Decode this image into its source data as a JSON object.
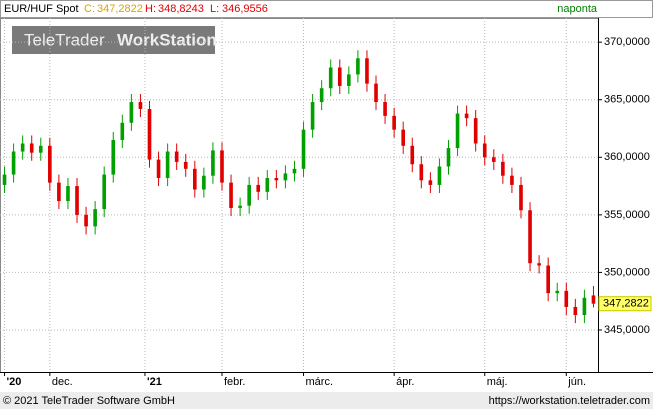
{
  "header": {
    "instrument": "EUR/HUF Spot",
    "close_label": "C:",
    "close_value": "347,2822",
    "high_label": "H:",
    "high_value": "348,8243",
    "low_label": "L:",
    "low_value": "346,9556",
    "period": "naponta"
  },
  "watermark": {
    "brand": "TeleTrader",
    "product": "WorkStation"
  },
  "footer": {
    "copyright": "© 2021 TeleTrader Software GmbH",
    "url": "https://workstation.teletrader.com"
  },
  "chart_data": {
    "type": "candlestick",
    "up_color": "#00a000",
    "down_color": "#e00000",
    "last_price": {
      "value": 347.2822,
      "label": "347,2822"
    },
    "xlim": [
      -0.5,
      65.5
    ],
    "xticks": [
      {
        "value": 0,
        "label": "'20"
      },
      {
        "value": 5,
        "label": "dec."
      },
      {
        "value": 15.5,
        "label": "'21"
      },
      {
        "value": 24,
        "label": "febr."
      },
      {
        "value": 33,
        "label": "márc."
      },
      {
        "value": 43,
        "label": "ápr."
      },
      {
        "value": 53,
        "label": "máj."
      },
      {
        "value": 62,
        "label": "jún."
      }
    ],
    "ylim": [
      341.35,
      372.1
    ],
    "yticks": [
      {
        "value": 345,
        "label": "345,0000"
      },
      {
        "value": 350,
        "label": "350,0000"
      },
      {
        "value": 355,
        "label": "355,0000"
      },
      {
        "value": 360,
        "label": "360,0000"
      },
      {
        "value": 365,
        "label": "365,0000"
      },
      {
        "value": 370,
        "label": "370,0000"
      }
    ],
    "grid": true,
    "open": [
      357.6,
      358.5,
      360.5,
      361.2,
      360.4,
      361.0,
      357.8,
      356.2,
      357.5,
      355.0,
      354.0,
      355.5,
      358.5,
      361.5,
      363.0,
      364.8,
      364.2,
      359.8,
      358.2,
      360.5,
      359.6,
      359.0,
      357.2,
      358.4,
      360.6,
      357.8,
      355.6,
      355.8,
      357.6,
      357.0,
      358.2,
      358.0,
      358.6,
      359.0,
      362.4,
      364.8,
      366.0,
      367.8,
      366.2,
      367.2,
      368.6,
      366.4,
      364.8,
      363.6,
      362.4,
      361.0,
      359.4,
      358.0,
      357.6,
      359.2,
      360.8,
      363.8,
      363.4,
      361.2,
      360.0,
      359.6,
      358.4,
      357.6,
      355.4,
      350.8,
      350.6,
      348.2,
      348.4,
      347.0,
      346.3,
      348.0
    ],
    "high": [
      359.2,
      361.2,
      361.9,
      361.9,
      361.7,
      361.7,
      358.5,
      358.2,
      358.2,
      355.7,
      356.2,
      359.2,
      362.2,
      363.7,
      365.5,
      365.5,
      364.9,
      360.5,
      361.2,
      361.2,
      360.3,
      359.7,
      359.1,
      361.3,
      361.3,
      358.5,
      356.5,
      358.3,
      358.3,
      358.9,
      358.9,
      359.3,
      359.7,
      363.1,
      365.5,
      366.7,
      368.5,
      368.5,
      367.9,
      369.3,
      369.3,
      367.1,
      365.5,
      364.3,
      363.1,
      361.7,
      360.1,
      358.7,
      359.9,
      361.5,
      364.5,
      364.5,
      364.1,
      361.9,
      360.7,
      360.3,
      359.1,
      358.3,
      356.1,
      351.5,
      351.3,
      349.1,
      349.1,
      347.7,
      348.5,
      348.8243
    ],
    "low": [
      356.9,
      357.8,
      359.8,
      359.7,
      359.7,
      357.1,
      355.5,
      355.5,
      354.3,
      353.3,
      353.3,
      354.8,
      357.8,
      360.8,
      362.3,
      363.5,
      359.1,
      357.5,
      357.5,
      358.9,
      358.3,
      356.5,
      356.5,
      357.7,
      357.1,
      354.9,
      354.9,
      355.1,
      356.3,
      356.3,
      357.3,
      357.3,
      357.9,
      358.3,
      361.7,
      364.1,
      365.3,
      365.5,
      365.5,
      366.5,
      365.7,
      364.1,
      362.9,
      361.7,
      360.3,
      358.7,
      357.3,
      356.9,
      356.9,
      358.5,
      360.1,
      362.7,
      360.5,
      359.3,
      358.9,
      357.7,
      356.9,
      354.7,
      350.1,
      349.9,
      347.5,
      347.5,
      346.3,
      345.6,
      345.6,
      346.9556
    ],
    "close": [
      358.5,
      360.5,
      361.2,
      360.4,
      361.0,
      357.8,
      356.2,
      357.5,
      355.0,
      354.0,
      355.5,
      358.5,
      361.5,
      363.0,
      364.8,
      364.2,
      359.8,
      358.2,
      360.5,
      359.6,
      359.0,
      357.2,
      358.4,
      360.6,
      357.8,
      355.6,
      355.8,
      357.6,
      357.0,
      358.2,
      358.0,
      358.6,
      359.0,
      362.4,
      364.8,
      366.0,
      367.8,
      366.2,
      367.2,
      368.6,
      366.4,
      364.8,
      363.6,
      362.4,
      361.0,
      359.4,
      358.0,
      357.6,
      359.2,
      360.8,
      363.8,
      363.4,
      361.2,
      360.0,
      359.6,
      358.4,
      357.6,
      355.4,
      350.8,
      350.6,
      348.2,
      348.4,
      347.0,
      346.3,
      347.8,
      347.2822
    ]
  }
}
